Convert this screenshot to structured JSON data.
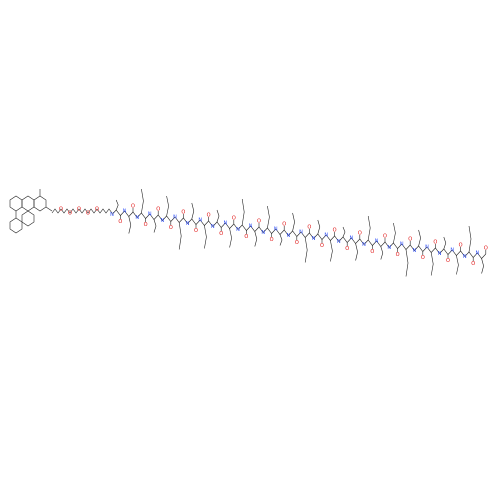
{
  "molecule": {
    "linker_labels": [
      "O",
      "O",
      "O",
      "O",
      "O"
    ],
    "backbone_labels": [
      "N",
      "O",
      "N",
      "O",
      "N",
      "O",
      "N",
      "O",
      "N",
      "O",
      "N",
      "O",
      "N",
      "O",
      "N",
      "O",
      "N",
      "O",
      "N",
      "O",
      "N",
      "O",
      "N",
      "O",
      "N",
      "O",
      "N",
      "O",
      "N",
      "O",
      "N",
      "O",
      "N",
      "O",
      "N",
      "O",
      "N",
      "O",
      "N",
      "O",
      "N",
      "O",
      "N",
      "O",
      "N",
      "O",
      "N",
      "O",
      "N",
      "O",
      "N",
      "O",
      "N",
      "O",
      "N",
      "O",
      "N",
      "O",
      "N",
      "O"
    ]
  }
}
